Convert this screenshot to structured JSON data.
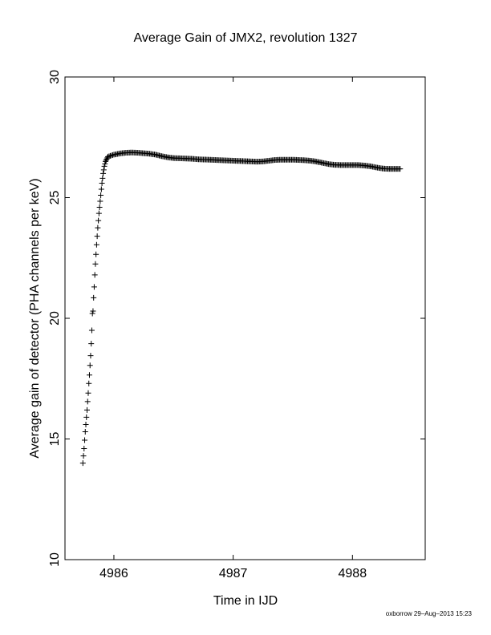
{
  "chart_data": {
    "type": "scatter",
    "title": "Average Gain of JMX2, revolution 1327",
    "xlabel": "Time in IJD",
    "ylabel": "Average gain of detector (PHA channels per keV)",
    "xlim": [
      4985.59,
      4988.61
    ],
    "ylim": [
      10,
      30
    ],
    "xticks": [
      4986,
      4987,
      4988
    ],
    "yticks": [
      10,
      15,
      20,
      25,
      30
    ],
    "marker": "+",
    "grid": false,
    "color": "#000000",
    "points": [
      [
        4985.74,
        14.0
      ],
      [
        4985.745,
        14.3
      ],
      [
        4985.75,
        14.6
      ],
      [
        4985.755,
        14.95
      ],
      [
        4985.76,
        15.3
      ],
      [
        4985.765,
        15.6
      ],
      [
        4985.77,
        15.9
      ],
      [
        4985.775,
        16.2
      ],
      [
        4985.78,
        16.55
      ],
      [
        4985.785,
        16.9
      ],
      [
        4985.79,
        17.3
      ],
      [
        4985.795,
        17.65
      ],
      [
        4985.8,
        18.05
      ],
      [
        4985.805,
        18.45
      ],
      [
        4985.81,
        18.95
      ],
      [
        4985.815,
        19.5
      ],
      [
        4985.82,
        20.2
      ],
      [
        4985.825,
        20.3
      ],
      [
        4985.83,
        20.85
      ],
      [
        4985.835,
        21.3
      ],
      [
        4985.84,
        21.8
      ],
      [
        4985.845,
        22.25
      ],
      [
        4985.85,
        22.65
      ],
      [
        4985.855,
        23.05
      ],
      [
        4985.86,
        23.4
      ],
      [
        4985.865,
        23.75
      ],
      [
        4985.87,
        24.05
      ],
      [
        4985.875,
        24.35
      ],
      [
        4985.88,
        24.6
      ],
      [
        4985.885,
        24.85
      ],
      [
        4985.89,
        25.1
      ],
      [
        4985.895,
        25.35
      ],
      [
        4985.9,
        25.6
      ],
      [
        4985.905,
        25.8
      ],
      [
        4985.91,
        26.0
      ],
      [
        4985.915,
        26.15
      ],
      [
        4985.92,
        26.3
      ],
      [
        4985.925,
        26.4
      ],
      [
        4985.93,
        26.5
      ],
      [
        4985.935,
        26.55
      ],
      [
        4985.94,
        26.6
      ],
      [
        4985.945,
        26.65
      ],
      [
        4985.95,
        26.7
      ],
      [
        4986.0,
        26.78
      ],
      [
        4986.05,
        26.83
      ],
      [
        4986.1,
        26.86
      ],
      [
        4986.15,
        26.87
      ],
      [
        4986.2,
        26.86
      ],
      [
        4986.25,
        26.84
      ],
      [
        4986.3,
        26.82
      ],
      [
        4986.35,
        26.78
      ],
      [
        4986.4,
        26.72
      ],
      [
        4986.45,
        26.67
      ],
      [
        4986.5,
        26.64
      ],
      [
        4986.55,
        26.63
      ],
      [
        4986.6,
        26.62
      ],
      [
        4986.65,
        26.61
      ],
      [
        4986.7,
        26.59
      ],
      [
        4986.75,
        26.58
      ],
      [
        4986.8,
        26.57
      ],
      [
        4986.85,
        26.56
      ],
      [
        4986.9,
        26.55
      ],
      [
        4986.95,
        26.54
      ],
      [
        4987.0,
        26.53
      ],
      [
        4987.05,
        26.52
      ],
      [
        4987.1,
        26.51
      ],
      [
        4987.15,
        26.5
      ],
      [
        4987.2,
        26.49
      ],
      [
        4987.25,
        26.5
      ],
      [
        4987.3,
        26.53
      ],
      [
        4987.35,
        26.56
      ],
      [
        4987.4,
        26.57
      ],
      [
        4987.45,
        26.57
      ],
      [
        4987.5,
        26.57
      ],
      [
        4987.55,
        26.56
      ],
      [
        4987.6,
        26.55
      ],
      [
        4987.65,
        26.53
      ],
      [
        4987.7,
        26.49
      ],
      [
        4987.75,
        26.44
      ],
      [
        4987.8,
        26.39
      ],
      [
        4987.85,
        26.36
      ],
      [
        4987.9,
        26.35
      ],
      [
        4987.95,
        26.35
      ],
      [
        4988.0,
        26.35
      ],
      [
        4988.05,
        26.35
      ],
      [
        4988.1,
        26.33
      ],
      [
        4988.15,
        26.3
      ],
      [
        4988.2,
        26.25
      ],
      [
        4988.25,
        26.21
      ],
      [
        4988.3,
        26.19
      ],
      [
        4988.35,
        26.19
      ],
      [
        4988.4,
        26.19
      ]
    ]
  },
  "footer": {
    "credit": "oxborrow 29–Aug–2013 15:23"
  }
}
